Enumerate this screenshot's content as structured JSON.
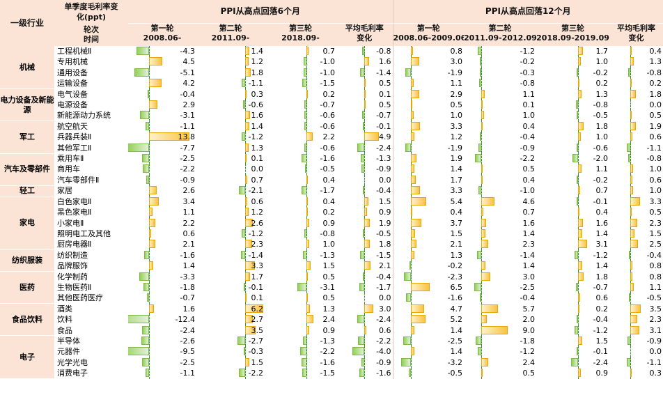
{
  "header": {
    "industry": "一级行业",
    "metric_l1": "单季度毛利率变",
    "metric_l2": "化(ppt)",
    "round_label": "轮次",
    "time_label": "时间",
    "sec6": "PPI从高点回落6个月",
    "sec12": "PPI从高点回落12个月",
    "r1": "第一轮",
    "r2": "第二轮",
    "r3": "第三轮",
    "avg_l1": "平均毛利率",
    "avg_l2": "变化",
    "t6_1": "2008.06-",
    "t6_2": "2011.09-",
    "t6_3": "2018.09-",
    "t12_1": "2008.06-2009.06",
    "t12_2": "2011.09-2012.09",
    "t12_3": "2018.09-2019.09"
  },
  "colors": {
    "header_bg": "#fbe4d5",
    "positive_bar": "#f9c243",
    "negative_bar": "#92d050",
    "axis_line": "#2e9a2e"
  },
  "groups": [
    {
      "name": "机械",
      "rows": [
        {
          "sub": "工程机械Ⅱ",
          "v": [
            -4.3,
            1.4,
            0.7,
            -0.8,
            0.8,
            -1.2,
            1.7,
            0.4
          ]
        },
        {
          "sub": "专用机械",
          "v": [
            4.5,
            1.2,
            -1.0,
            1.6,
            3.0,
            -0.2,
            1.0,
            1.3
          ]
        },
        {
          "sub": "通用设备",
          "v": [
            -5.1,
            1.8,
            -1.0,
            -1.4,
            -1.9,
            -0.3,
            -0.2,
            -0.8
          ]
        },
        {
          "sub": "运输设备",
          "v": [
            4.2,
            -1.1,
            -1.5,
            0.5,
            1.1,
            -0.8,
            0.2,
            0.2
          ]
        }
      ]
    },
    {
      "name": "电力设备及新能源",
      "rows": [
        {
          "sub": "电气设备",
          "v": [
            -0.4,
            0.3,
            0.2,
            0.1,
            2.9,
            1.1,
            1.3,
            1.8
          ]
        },
        {
          "sub": "电源设备",
          "v": [
            2.9,
            -0.6,
            -0.7,
            0.5,
            0.5,
            0.1,
            -0.8,
            0.0
          ]
        },
        {
          "sub": "新能源动力系统",
          "v": [
            -3.1,
            1.6,
            -0.6,
            -0.7,
            1.0,
            1.0,
            -0.5,
            0.5
          ]
        }
      ]
    },
    {
      "name": "军工",
      "rows": [
        {
          "sub": "航空航天",
          "v": [
            -1.1,
            1.4,
            -0.6,
            -0.1,
            3.3,
            0.4,
            1.8,
            1.9
          ]
        },
        {
          "sub": "兵器兵装Ⅱ",
          "v": [
            13.8,
            -1.2,
            2.2,
            4.9,
            1.2,
            -0.4,
            1.0,
            0.6
          ]
        },
        {
          "sub": "其他军工Ⅱ",
          "v": [
            -7.7,
            1.3,
            -0.6,
            -2.4,
            -1.9,
            -0.9,
            -0.6,
            -1.1
          ]
        }
      ]
    },
    {
      "name": "汽车及零部件",
      "rows": [
        {
          "sub": "乘用车Ⅱ",
          "v": [
            -2.5,
            0.1,
            -1.6,
            -1.3,
            1.9,
            -2.2,
            -2.0,
            -0.8
          ]
        },
        {
          "sub": "商用车",
          "v": [
            -2.2,
            0.0,
            -0.5,
            -0.9,
            1.4,
            0.5,
            1.1,
            1.0
          ]
        },
        {
          "sub": "汽车零部件Ⅱ",
          "v": [
            -0.9,
            0.7,
            0.4,
            0.0,
            1.7,
            0.4,
            -0.2,
            0.6
          ]
        }
      ]
    },
    {
      "name": "轻工",
      "rows": [
        {
          "sub": "家居",
          "v": [
            2.6,
            -2.1,
            -1.7,
            -0.4,
            3.3,
            -1.0,
            0.7,
            1.0
          ]
        }
      ]
    },
    {
      "name": "家电",
      "rows": [
        {
          "sub": "白色家电Ⅱ",
          "v": [
            3.4,
            0.6,
            0.4,
            1.5,
            5.4,
            4.6,
            -0.1,
            3.3
          ]
        },
        {
          "sub": "黑色家电Ⅱ",
          "v": [
            1.1,
            1.2,
            0.2,
            0.9,
            0.4,
            0.7,
            0.4,
            0.5
          ]
        },
        {
          "sub": "小家电Ⅱ",
          "v": [
            2.2,
            2.6,
            0.9,
            1.9,
            3.7,
            1.6,
            1.6,
            2.3
          ]
        },
        {
          "sub": "照明电工及其他",
          "v": [
            0.6,
            -1.2,
            -0.8,
            -0.5,
            1.5,
            1.4,
            1.4,
            1.5
          ]
        },
        {
          "sub": "厨房电器Ⅱ",
          "v": [
            2.1,
            2.3,
            1.0,
            1.8,
            2.1,
            2.3,
            3.1,
            2.5
          ]
        }
      ]
    },
    {
      "name": "纺织服装",
      "rows": [
        {
          "sub": "纺织制造",
          "v": [
            -1.6,
            -1.4,
            -1.3,
            -1.5,
            1.3,
            -1.4,
            -1.2,
            -0.4
          ]
        },
        {
          "sub": "品牌服饰",
          "v": [
            1.4,
            3.3,
            1.5,
            2.1,
            -0.2,
            1.4,
            1.4,
            0.8
          ]
        }
      ]
    },
    {
      "name": "医药",
      "rows": [
        {
          "sub": "化学制药",
          "v": [
            -3.3,
            1.7,
            0.5,
            -0.4,
            -2.3,
            3.0,
            1.8,
            0.8
          ]
        },
        {
          "sub": "生物医药Ⅱ",
          "v": [
            -1.8,
            -0.1,
            -3.1,
            -1.7,
            6.5,
            -2.5,
            -0.7,
            1.1
          ]
        },
        {
          "sub": "其他医药医疗",
          "v": [
            -0.7,
            0.1,
            0.5,
            0.0,
            -1.6,
            -0.4,
            0.6,
            -0.5
          ]
        }
      ]
    },
    {
      "name": "食品饮料",
      "rows": [
        {
          "sub": "酒类",
          "v": [
            1.6,
            6.2,
            1.3,
            3.0,
            4.7,
            5.7,
            0.2,
            3.5
          ]
        },
        {
          "sub": "饮料",
          "v": [
            -12.4,
            2.7,
            2.4,
            -2.4,
            5.2,
            2.0,
            -0.4,
            2.3
          ]
        },
        {
          "sub": "食品",
          "v": [
            -2.4,
            3.5,
            0.9,
            0.6,
            1.4,
            9.0,
            -1.2,
            3.1
          ]
        }
      ]
    },
    {
      "name": "电子",
      "rows": [
        {
          "sub": "半导体",
          "v": [
            -2.6,
            -2.7,
            -1.3,
            -2.2,
            -2.5,
            -1.8,
            1.5,
            -0.9
          ]
        },
        {
          "sub": "元器件",
          "v": [
            -9.5,
            -0.3,
            -2.2,
            -4.0,
            1.4,
            -1.2,
            -0.1,
            0.0
          ]
        },
        {
          "sub": "光学光电",
          "v": [
            -2.5,
            1.5,
            -1.6,
            -0.9,
            -3.2,
            2.4,
            -2.4,
            -1.1
          ]
        },
        {
          "sub": "消费电子",
          "v": [
            -1.1,
            -2.2,
            -1.5,
            -1.6,
            -0.5,
            0.5,
            0.9,
            0.3
          ]
        }
      ]
    }
  ]
}
